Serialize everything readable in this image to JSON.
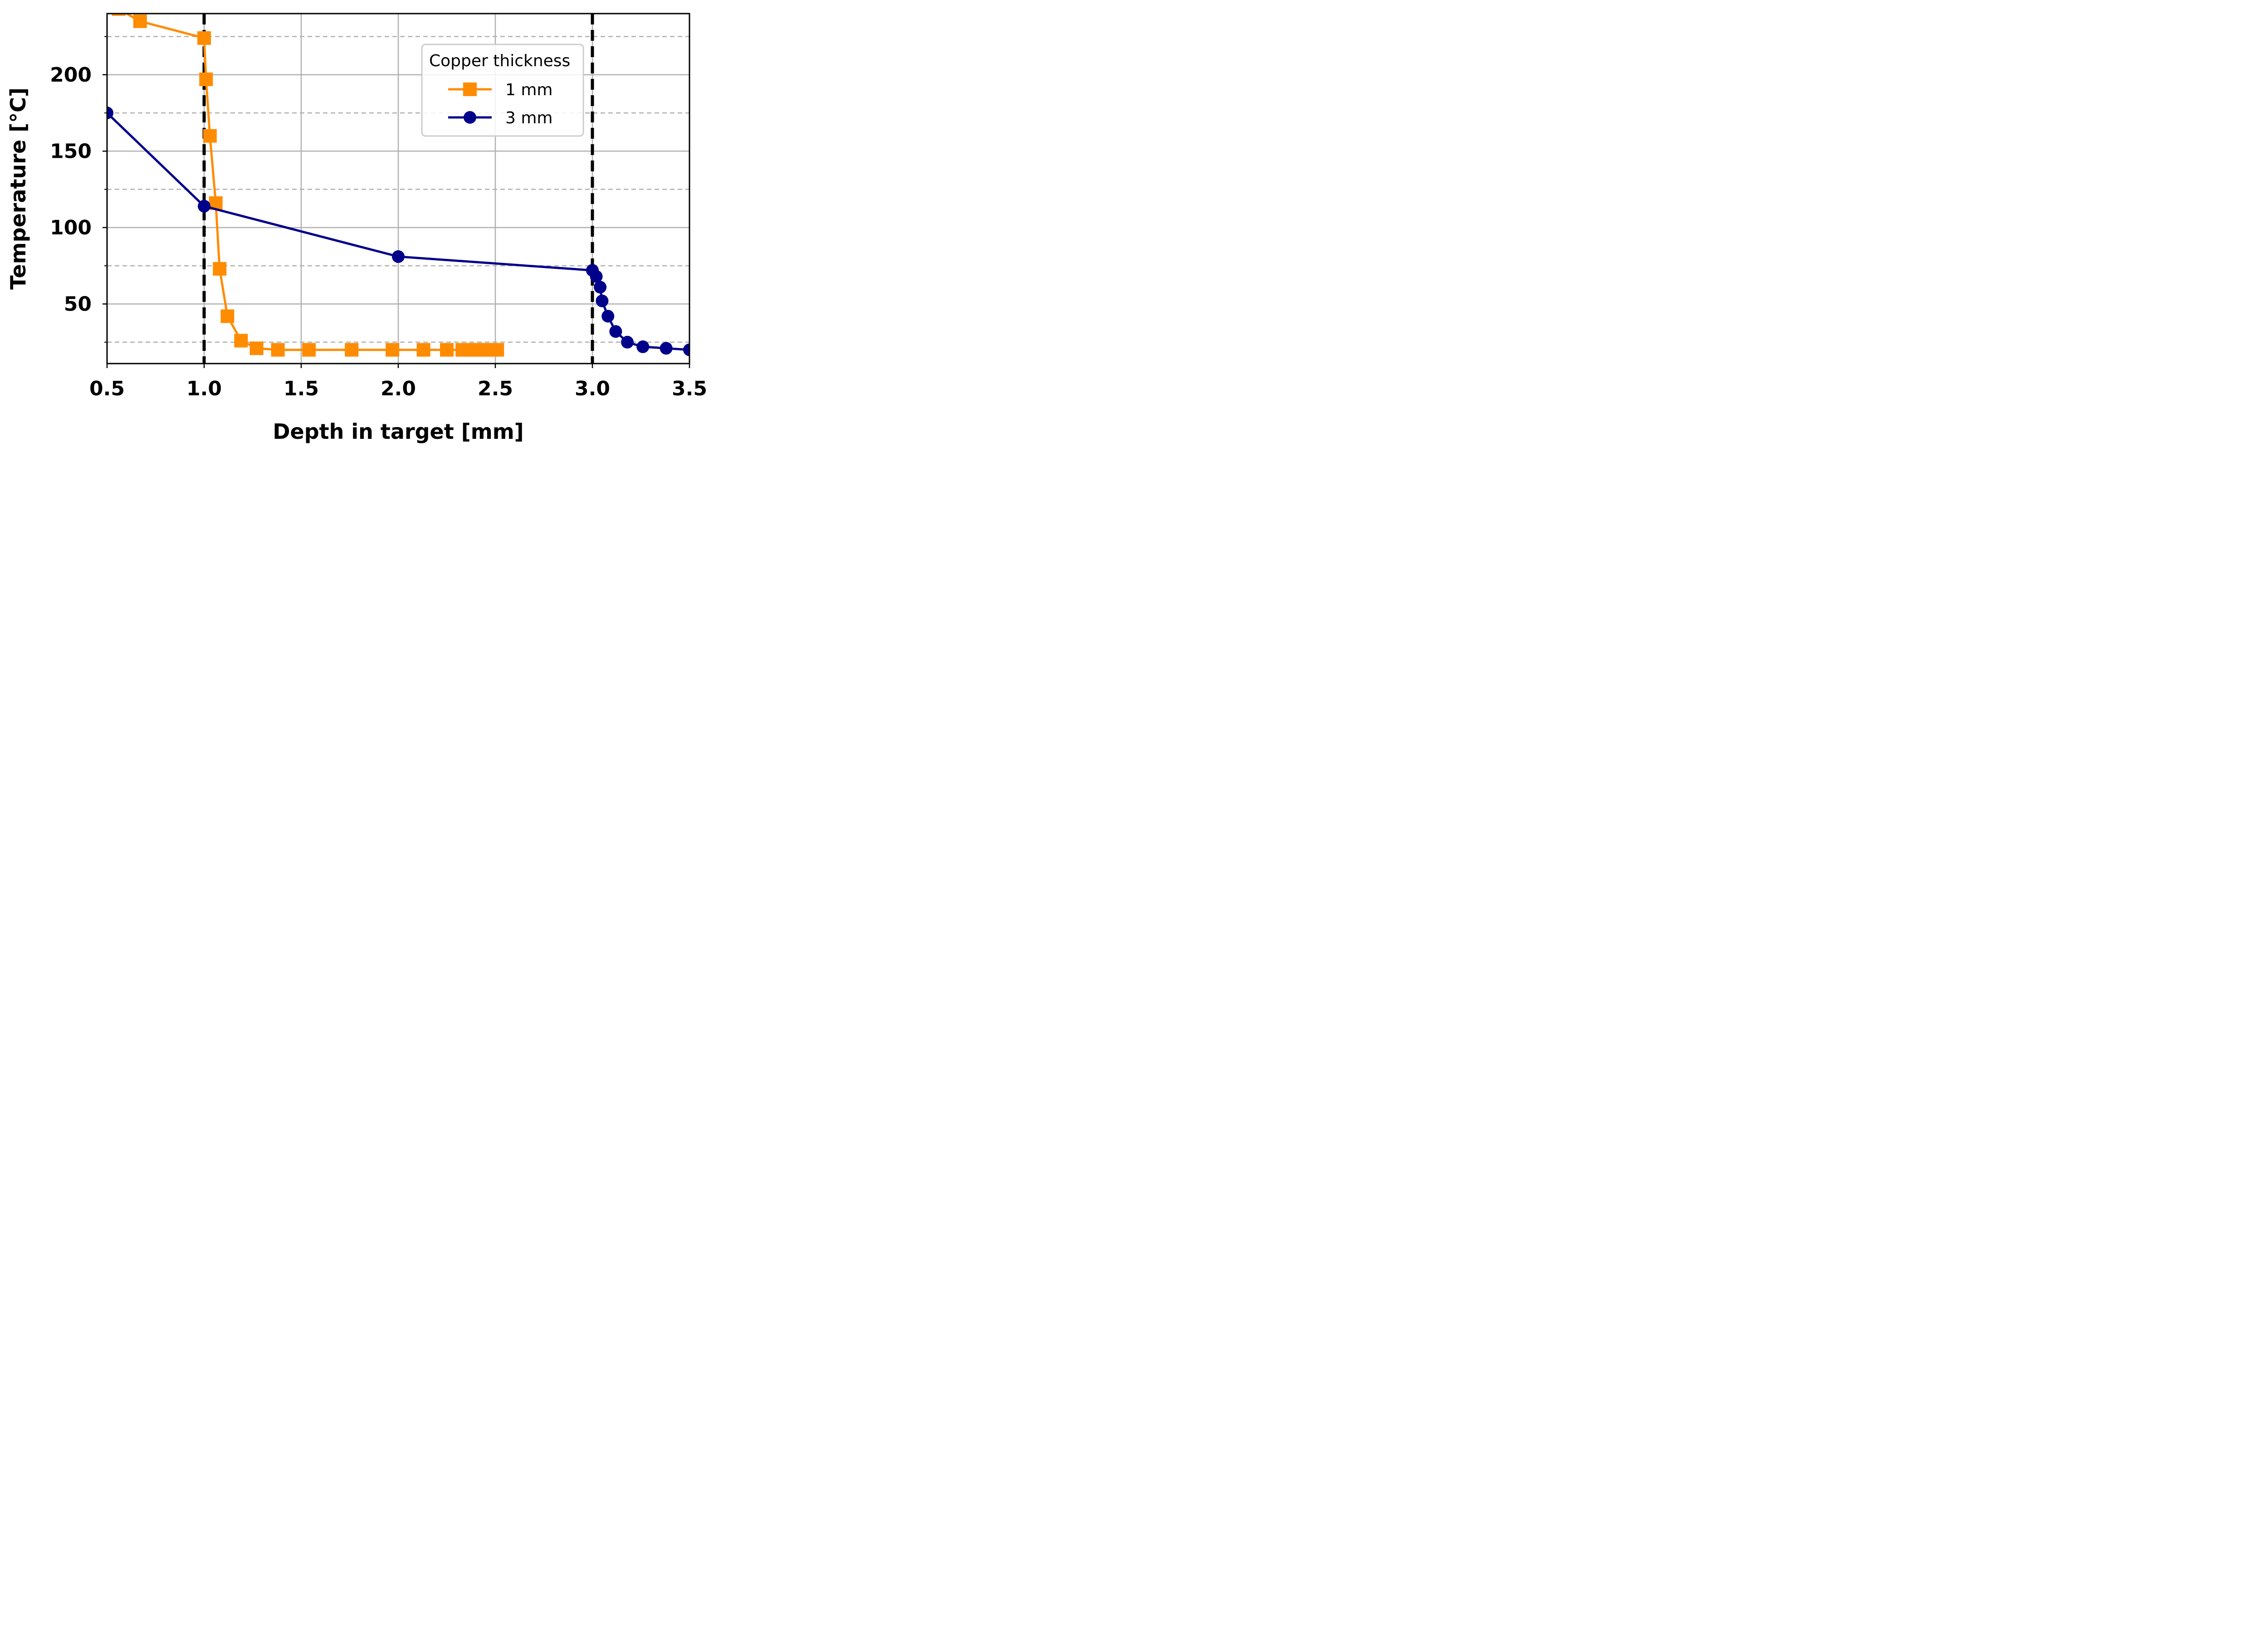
{
  "chart_data": {
    "type": "line",
    "xlabel": "Depth in target [mm]",
    "ylabel": "Temperature [°C]",
    "xlim": [
      0.5,
      3.5
    ],
    "ylim": [
      11,
      240
    ],
    "x_ticks": [
      {
        "value": 0.5,
        "label": "0.5"
      },
      {
        "value": 1.0,
        "label": "1.0"
      },
      {
        "value": 1.5,
        "label": "1.5"
      },
      {
        "value": 2.0,
        "label": "2.0"
      },
      {
        "value": 2.5,
        "label": "2.5"
      },
      {
        "value": 3.0,
        "label": "3.0"
      },
      {
        "value": 3.5,
        "label": "3.5"
      }
    ],
    "y_ticks": [
      {
        "value": 50,
        "label": "50"
      },
      {
        "value": 100,
        "label": "100"
      },
      {
        "value": 150,
        "label": "150"
      },
      {
        "value": 200,
        "label": "200"
      }
    ],
    "y_minor_ticks": [
      25,
      75,
      125,
      175,
      225
    ],
    "grid": true,
    "vertical_reference_lines": [
      1.0,
      3.0
    ],
    "legend": {
      "title": "Copper thickness",
      "placement": "upper-right",
      "entries": [
        "1 mm",
        "3 mm"
      ]
    },
    "series": [
      {
        "name": "1 mm",
        "color": "#ff8c00",
        "marker": "square",
        "x": [
          0.56,
          0.67,
          1.0,
          1.01,
          1.03,
          1.06,
          1.08,
          1.12,
          1.19,
          1.27,
          1.38,
          1.54,
          1.76,
          1.97,
          2.13,
          2.25,
          2.33,
          2.36,
          2.39,
          2.42,
          2.45,
          2.48,
          2.51
        ],
        "y": [
          243,
          235,
          224,
          197,
          160,
          116,
          73,
          42,
          26,
          21,
          20,
          20,
          20,
          20,
          20,
          20,
          20,
          20,
          20,
          20,
          20,
          20,
          20
        ]
      },
      {
        "name": "3 mm",
        "color": "#00008b",
        "marker": "circle",
        "x": [
          0.5,
          1.0,
          2.0,
          3.0,
          3.02,
          3.04,
          3.05,
          3.08,
          3.12,
          3.18,
          3.26,
          3.38,
          3.5
        ],
        "y": [
          175,
          114,
          81,
          72,
          68,
          61,
          52,
          42,
          32,
          25,
          22,
          21,
          20
        ]
      }
    ]
  }
}
